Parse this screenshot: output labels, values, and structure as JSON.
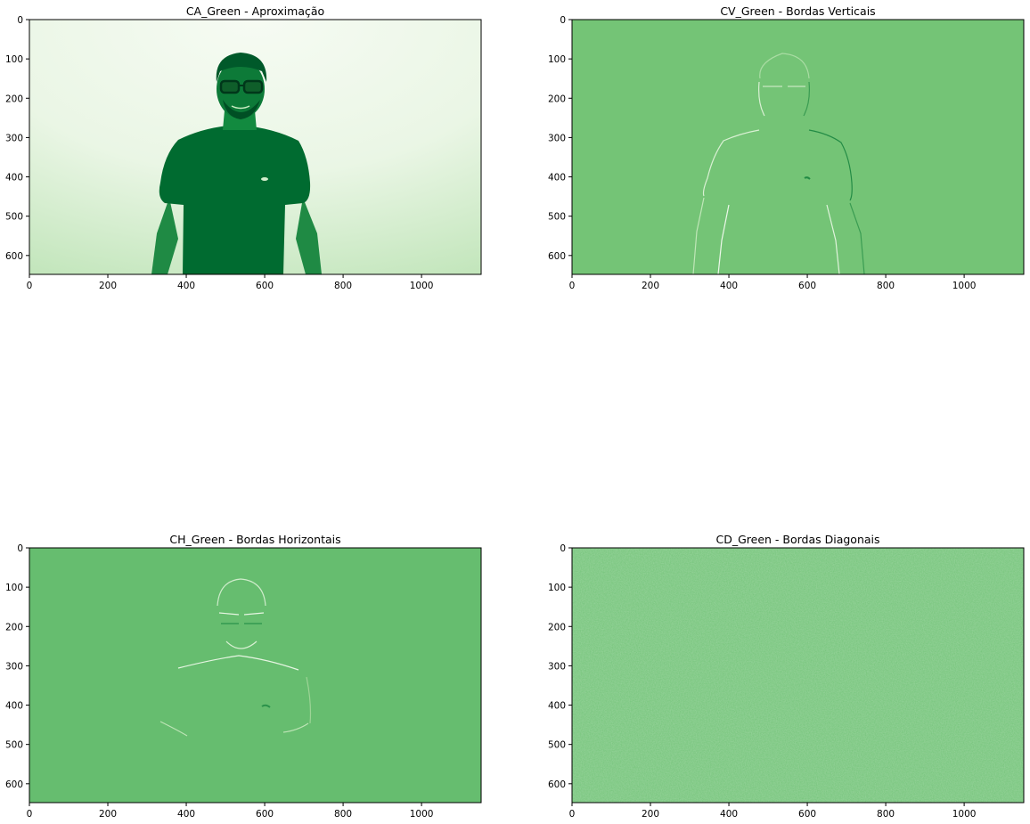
{
  "chart_data": [
    {
      "type": "heatmap",
      "title": "CA_Green - Aproximação",
      "xlim": [
        0,
        1152
      ],
      "ylim": [
        648,
        0
      ],
      "xticks": [
        0,
        200,
        400,
        600,
        800,
        1000
      ],
      "yticks": [
        0,
        100,
        200,
        300,
        400,
        500,
        600
      ],
      "colormap": "Greens",
      "colors": {
        "low": "#f2f9ee",
        "mid": "#b5e0ad",
        "high": "#00612c"
      },
      "content": "approximation"
    },
    {
      "type": "heatmap",
      "title": "CV_Green - Bordas Verticais",
      "xlim": [
        0,
        1152
      ],
      "ylim": [
        648,
        0
      ],
      "xticks": [
        0,
        200,
        400,
        600,
        800,
        1000
      ],
      "yticks": [
        0,
        100,
        200,
        300,
        400,
        500,
        600
      ],
      "colormap": "Greens",
      "colors": {
        "base": "#74c476",
        "light": "#d9f0d3",
        "dark": "#238b45"
      },
      "content": "vertical-edges"
    },
    {
      "type": "heatmap",
      "title": "CH_Green - Bordas Horizontais",
      "xlim": [
        0,
        1152
      ],
      "ylim": [
        648,
        0
      ],
      "xticks": [
        0,
        200,
        400,
        600,
        800,
        1000
      ],
      "yticks": [
        0,
        100,
        200,
        300,
        400,
        500,
        600
      ],
      "colormap": "Greens",
      "colors": {
        "base": "#66bd6f",
        "light": "#d9f0d3",
        "dark": "#2a924a"
      },
      "content": "horizontal-edges"
    },
    {
      "type": "heatmap",
      "title": "CD_Green - Bordas Diagonais",
      "xlim": [
        0,
        1152
      ],
      "ylim": [
        648,
        0
      ],
      "xticks": [
        0,
        200,
        400,
        600,
        800,
        1000
      ],
      "yticks": [
        0,
        100,
        200,
        300,
        400,
        500,
        600
      ],
      "colormap": "Greens",
      "colors": {
        "base": "#6cc071",
        "light": "#8fd18f",
        "dark": "#52a95a"
      },
      "content": "diagonal-noise"
    }
  ]
}
